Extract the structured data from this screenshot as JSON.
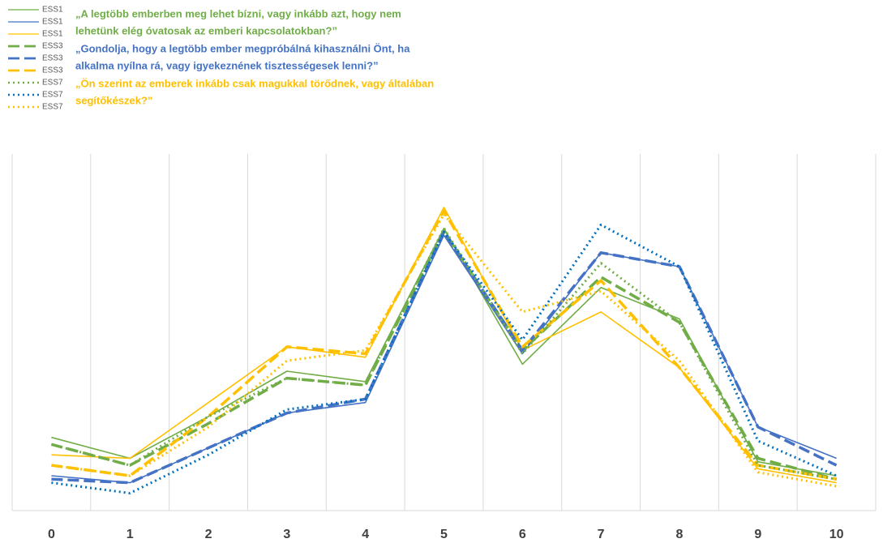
{
  "chart_data": {
    "type": "line",
    "categories": [
      "0",
      "1",
      "2",
      "3",
      "4",
      "5",
      "6",
      "7",
      "8",
      "9",
      "10"
    ],
    "ylim": [
      0,
      100
    ],
    "annotations": [
      {
        "lines": [
          "„A legtöbb emberben meg lehet bízni, vagy inkább azt, hogy nem",
          "lehetünk elég óvatosak az emberi kapcsolatokban?”"
        ],
        "color": "#70ad47"
      },
      {
        "lines": [
          "„Gondolja, hogy a legtöbb ember megpróbálná kihasználni Önt, ha",
          "alkalma nyílna rá, vagy igyekeznének tisztességesek lenni?”"
        ],
        "color": "#4472c4"
      },
      {
        "lines": [
          "„Ön szerint az emberek inkább csak magukkal törődnek, vagy általában",
          "segítőkészek?”"
        ],
        "color": "#ffc000"
      }
    ],
    "series": [
      {
        "name": "ESS1",
        "color": "#70ad47",
        "dash": "solid",
        "values": [
          21,
          15,
          27,
          40,
          37,
          81,
          42,
          64,
          55,
          14,
          10
        ]
      },
      {
        "name": "ESS1",
        "color": "#4472c4",
        "dash": "solid",
        "values": [
          10,
          8,
          18,
          28,
          31,
          79,
          45,
          74,
          70,
          24,
          15
        ]
      },
      {
        "name": "ESS1",
        "color": "#ffc000",
        "dash": "solid",
        "values": [
          16,
          15,
          31,
          47,
          44,
          87,
          46,
          57,
          41,
          12,
          8
        ]
      },
      {
        "name": "ESS3",
        "color": "#70ad47",
        "dash": "dash",
        "values": [
          19,
          13,
          25,
          38,
          36,
          80,
          46,
          67,
          54,
          15,
          9
        ]
      },
      {
        "name": "ESS3",
        "color": "#4472c4",
        "dash": "dash",
        "values": [
          9,
          8,
          18,
          28,
          32,
          80,
          46,
          74,
          70,
          24,
          13
        ]
      },
      {
        "name": "ESS3",
        "color": "#ffc000",
        "dash": "dash",
        "values": [
          13,
          10,
          27,
          47,
          45,
          86,
          47,
          66,
          41,
          13,
          9
        ]
      },
      {
        "name": "ESS7",
        "color": "#70ad47",
        "dash": "dot",
        "values": [
          19,
          13,
          27,
          38,
          36,
          81,
          45,
          71,
          54,
          13,
          9
        ]
      },
      {
        "name": "ESS7",
        "color": "#0070c0",
        "dash": "dot",
        "values": [
          8,
          5,
          16,
          29,
          32,
          80,
          49,
          82,
          70,
          20,
          10
        ]
      },
      {
        "name": "ESS7",
        "color": "#ffc000",
        "dash": "dot",
        "values": [
          13,
          10,
          24,
          43,
          46,
          85,
          57,
          63,
          43,
          11,
          7
        ]
      }
    ]
  }
}
